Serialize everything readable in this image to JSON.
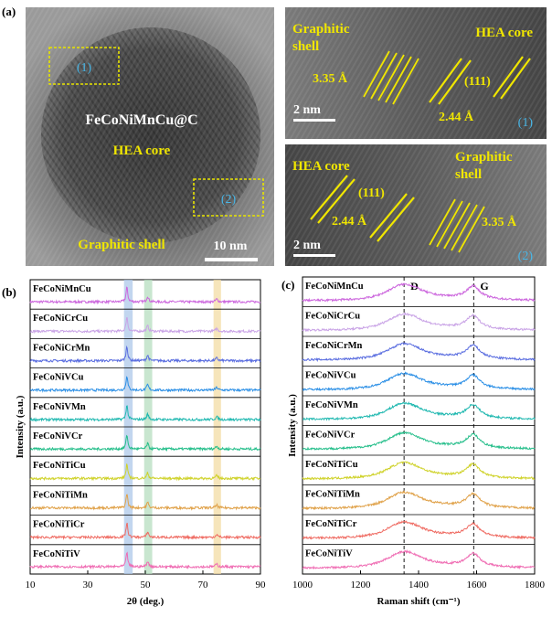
{
  "panels": {
    "a": {
      "label": "(a)",
      "main_image": {
        "sample_label": "FeCoNiMnCu@C",
        "core_label": "HEA core",
        "shell_label": "Graphitic shell",
        "roi1_label": "(1)",
        "roi2_label": "(2)",
        "scale_bar": "10 nm"
      },
      "inset1": {
        "shell_label_line1": "Graphitic",
        "shell_label_line2": "shell",
        "core_label": "HEA core",
        "d_spacing_shell": "3.35 Å",
        "plane": "(111)",
        "d_spacing_core": "2.44 Å",
        "scale_bar": "2 nm",
        "index": "(1)"
      },
      "inset2": {
        "core_label": "HEA core",
        "plane": "(111)",
        "shell_label_line1": "Graphitic",
        "shell_label_line2": "shell",
        "d_spacing_core": "2.44 Å",
        "d_spacing_shell": "3.35 Å",
        "scale_bar": "2 nm",
        "index": "(2)"
      }
    },
    "b": {
      "label": "(b)"
    },
    "c": {
      "label": "(c)"
    }
  },
  "chart_data": [
    {
      "type": "line",
      "panel": "b",
      "xlabel": "2θ (deg.)",
      "ylabel": "Intensity (a.u.)",
      "xlim": [
        10,
        90
      ],
      "xticks": [
        "10",
        "30",
        "50",
        "70",
        "90"
      ],
      "highlight_bands": [
        {
          "x": [
            42.6,
            45.6
          ],
          "color": "#aec8ea"
        },
        {
          "x": [
            49.6,
            52.4
          ],
          "color": "#b5ddbf"
        },
        {
          "x": [
            73.7,
            76.3
          ],
          "color": "#f3dca4"
        }
      ],
      "peaks_2theta": [
        43.6,
        50.8,
        74.8
      ],
      "series": [
        {
          "name": "FeCoNiMnCu",
          "color": "#cc66dd"
        },
        {
          "name": "FeCoNiCrCu",
          "color": "#c9a3e6"
        },
        {
          "name": "FeCoNiCrMn",
          "color": "#5b6ee0"
        },
        {
          "name": "FeCoNiVCu",
          "color": "#2b8fe6"
        },
        {
          "name": "FeCoNiVMn",
          "color": "#1fb8b0"
        },
        {
          "name": "FeCoNiVCr",
          "color": "#24be8a"
        },
        {
          "name": "FeCoNiTiCu",
          "color": "#cfd22a"
        },
        {
          "name": "FeCoNiTiMn",
          "color": "#e0a24a"
        },
        {
          "name": "FeCoNiTiCr",
          "color": "#ef6b62"
        },
        {
          "name": "FeCoNiTiV",
          "color": "#ef6cb3"
        }
      ]
    },
    {
      "type": "line",
      "panel": "c",
      "xlabel": "Raman shift (cm⁻¹)",
      "ylabel": "Intensity (a.u.)",
      "xlim": [
        1000,
        1800
      ],
      "xticks": [
        "1000",
        "1200",
        "1400",
        "1600",
        "1800"
      ],
      "band_labels": [
        {
          "label": "D",
          "x": 1350
        },
        {
          "label": "G",
          "x": 1590
        }
      ],
      "series": [
        {
          "name": "FeCoNiMnCu",
          "color": "#cc66dd"
        },
        {
          "name": "FeCoNiCrCu",
          "color": "#c9a3e6"
        },
        {
          "name": "FeCoNiCrMn",
          "color": "#5b6ee0"
        },
        {
          "name": "FeCoNiVCu",
          "color": "#2b8fe6"
        },
        {
          "name": "FeCoNiVMn",
          "color": "#1fb8b0"
        },
        {
          "name": "FeCoNiVCr",
          "color": "#24be8a"
        },
        {
          "name": "FeCoNiTiCu",
          "color": "#cfd22a"
        },
        {
          "name": "FeCoNiTiMn",
          "color": "#e0a24a"
        },
        {
          "name": "FeCoNiTiCr",
          "color": "#ef6b62"
        },
        {
          "name": "FeCoNiTiV",
          "color": "#ef6cb3"
        }
      ]
    }
  ]
}
